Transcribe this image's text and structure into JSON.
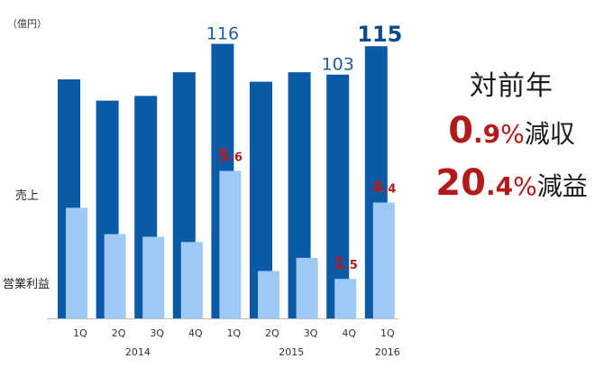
{
  "chart_data": {
    "type": "bar",
    "unit_label": "（億円）",
    "categories": [
      "1Q",
      "2Q",
      "3Q",
      "4Q",
      "1Q",
      "2Q",
      "3Q",
      "4Q",
      "1Q"
    ],
    "year_labels": [
      {
        "label": "2014",
        "from": 0,
        "to": 3
      },
      {
        "label": "2015",
        "from": 4,
        "to": 7
      },
      {
        "label": "2016",
        "from": 8,
        "to": 8
      }
    ],
    "series": [
      {
        "name": "売上",
        "color": "#0b5aa8",
        "values": [
          101,
          92,
          94,
          104,
          116,
          100,
          104,
          103,
          115
        ]
      },
      {
        "name": "営業利益",
        "color": "#9dc9f5",
        "values": [
          4.2,
          3.2,
          3.1,
          2.9,
          5.6,
          1.8,
          2.3,
          1.5,
          4.4
        ]
      }
    ],
    "data_labels": [
      {
        "series": 0,
        "index": 4,
        "text": "116",
        "color": "#1f5e9e",
        "weight": "normal"
      },
      {
        "series": 0,
        "index": 7,
        "text": "103",
        "color": "#1f5e9e",
        "weight": "normal"
      },
      {
        "series": 0,
        "index": 8,
        "text": "115",
        "color": "#0b4a8c",
        "weight": "bold"
      },
      {
        "series": 1,
        "index": 4,
        "text": "5.6",
        "color": "#b31b1b"
      },
      {
        "series": 1,
        "index": 7,
        "text": "1.5",
        "color": "#b31b1b"
      },
      {
        "series": 1,
        "index": 8,
        "text": "4.4",
        "color": "#b31b1b"
      }
    ]
  },
  "summary": {
    "title": "対前年",
    "rows": [
      {
        "big": "0",
        "small": ".9",
        "pct": "%",
        "word": "減収"
      },
      {
        "big": "20",
        "small": ".4",
        "pct": "%",
        "word": "減益"
      }
    ]
  }
}
